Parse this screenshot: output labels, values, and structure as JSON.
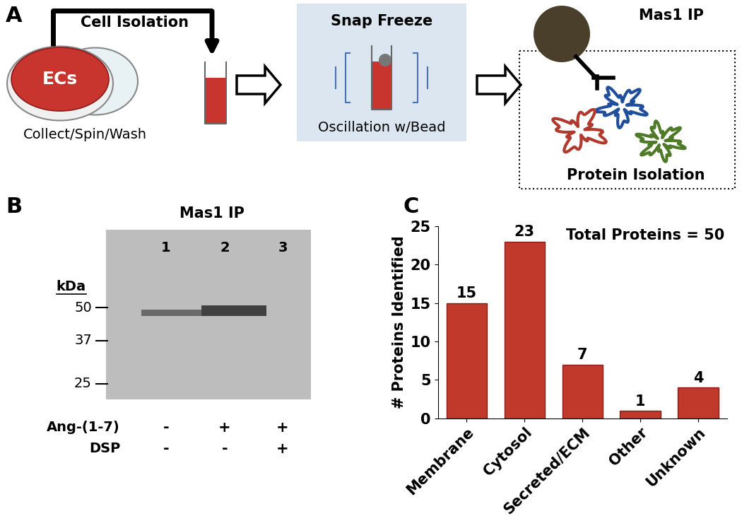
{
  "panels": {
    "A": {
      "label": "A",
      "header": "Cell Isolation",
      "dish_label": "ECs",
      "step1_caption": "Collect/Spin/Wash",
      "step2_title": "Snap Freeze",
      "step2_caption": "Oscillation w/Bead",
      "step3_title": "Mas1 IP",
      "step3_caption": "Protein Isolation"
    },
    "B": {
      "label": "B",
      "title": "Mas1 IP",
      "unit": "kDa",
      "markers": [
        50,
        37,
        25
      ],
      "lanes": [
        "1",
        "2",
        "3"
      ],
      "treatments": [
        {
          "name": "Ang-(1-7)",
          "values": [
            "-",
            "+",
            "+"
          ]
        },
        {
          "name": "DSP",
          "values": [
            "-",
            "-",
            "+"
          ]
        }
      ]
    },
    "C": {
      "label": "C"
    }
  },
  "chart_data": {
    "type": "bar",
    "title": "Total Proteins = 50",
    "y_label": "# Proteins Identified",
    "categories": [
      "Membrane",
      "Cytosol",
      "Secreted/ECM",
      "Other",
      "Unknown"
    ],
    "values": [
      15,
      23,
      7,
      1,
      4
    ],
    "color": "#c0392b",
    "ylim": [
      0,
      25
    ],
    "yticks": [
      0,
      5,
      10,
      15,
      20,
      25
    ],
    "grid": false,
    "data_labels": true
  }
}
